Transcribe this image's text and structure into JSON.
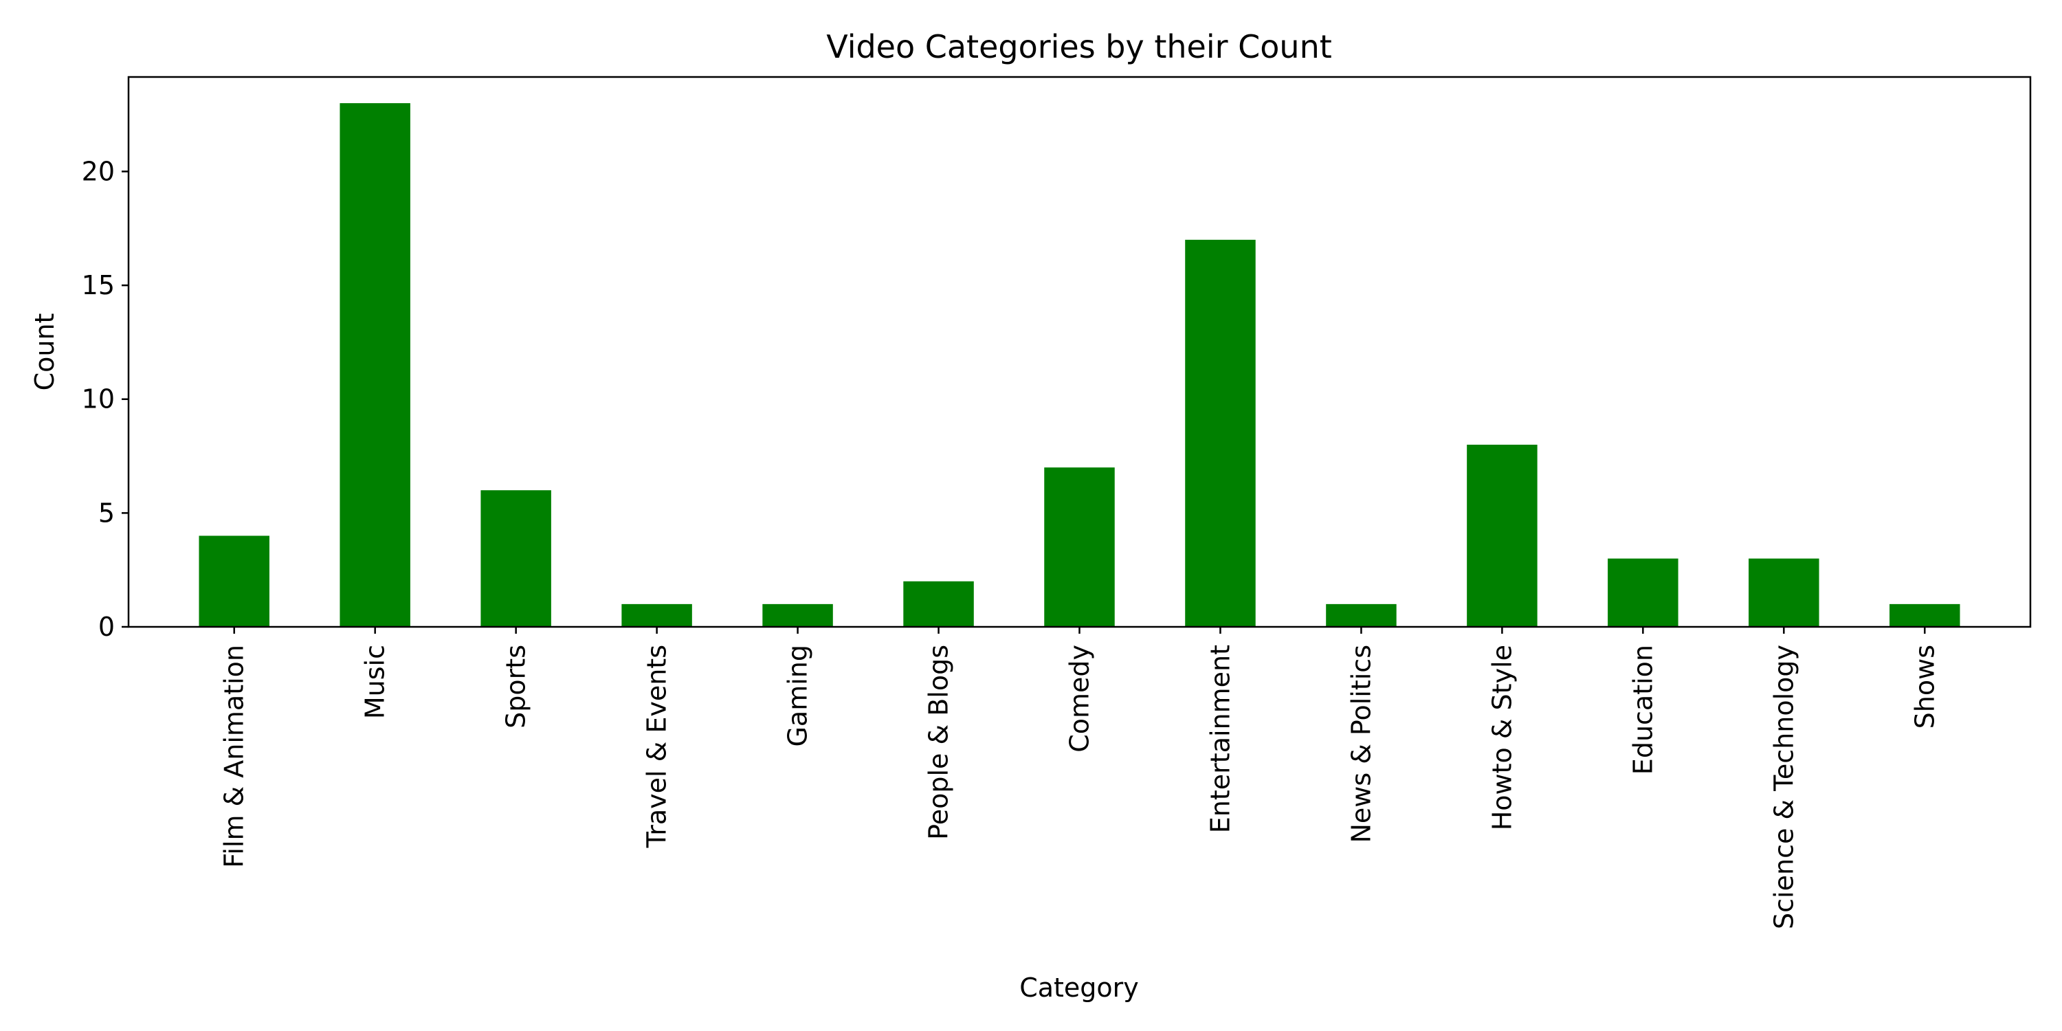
{
  "chart_data": {
    "type": "bar",
    "title": "Video Categories by their Count",
    "xlabel": "Category",
    "ylabel": "Count",
    "categories": [
      "Film & Animation",
      "Music",
      "Sports",
      "Travel & Events",
      "Gaming",
      "People & Blogs",
      "Comedy",
      "Entertainment",
      "News & Politics",
      "Howto & Style",
      "Education",
      "Science & Technology",
      "Shows"
    ],
    "values": [
      4,
      23,
      6,
      1,
      1,
      2,
      7,
      17,
      1,
      8,
      3,
      3,
      1
    ],
    "ylim": [
      0,
      24.15
    ],
    "yticks": [
      0,
      5,
      10,
      15,
      20
    ],
    "grid": false,
    "legend": "none",
    "colors": {
      "bar": "#008000",
      "axis": "#000000",
      "background": "#ffffff"
    }
  }
}
